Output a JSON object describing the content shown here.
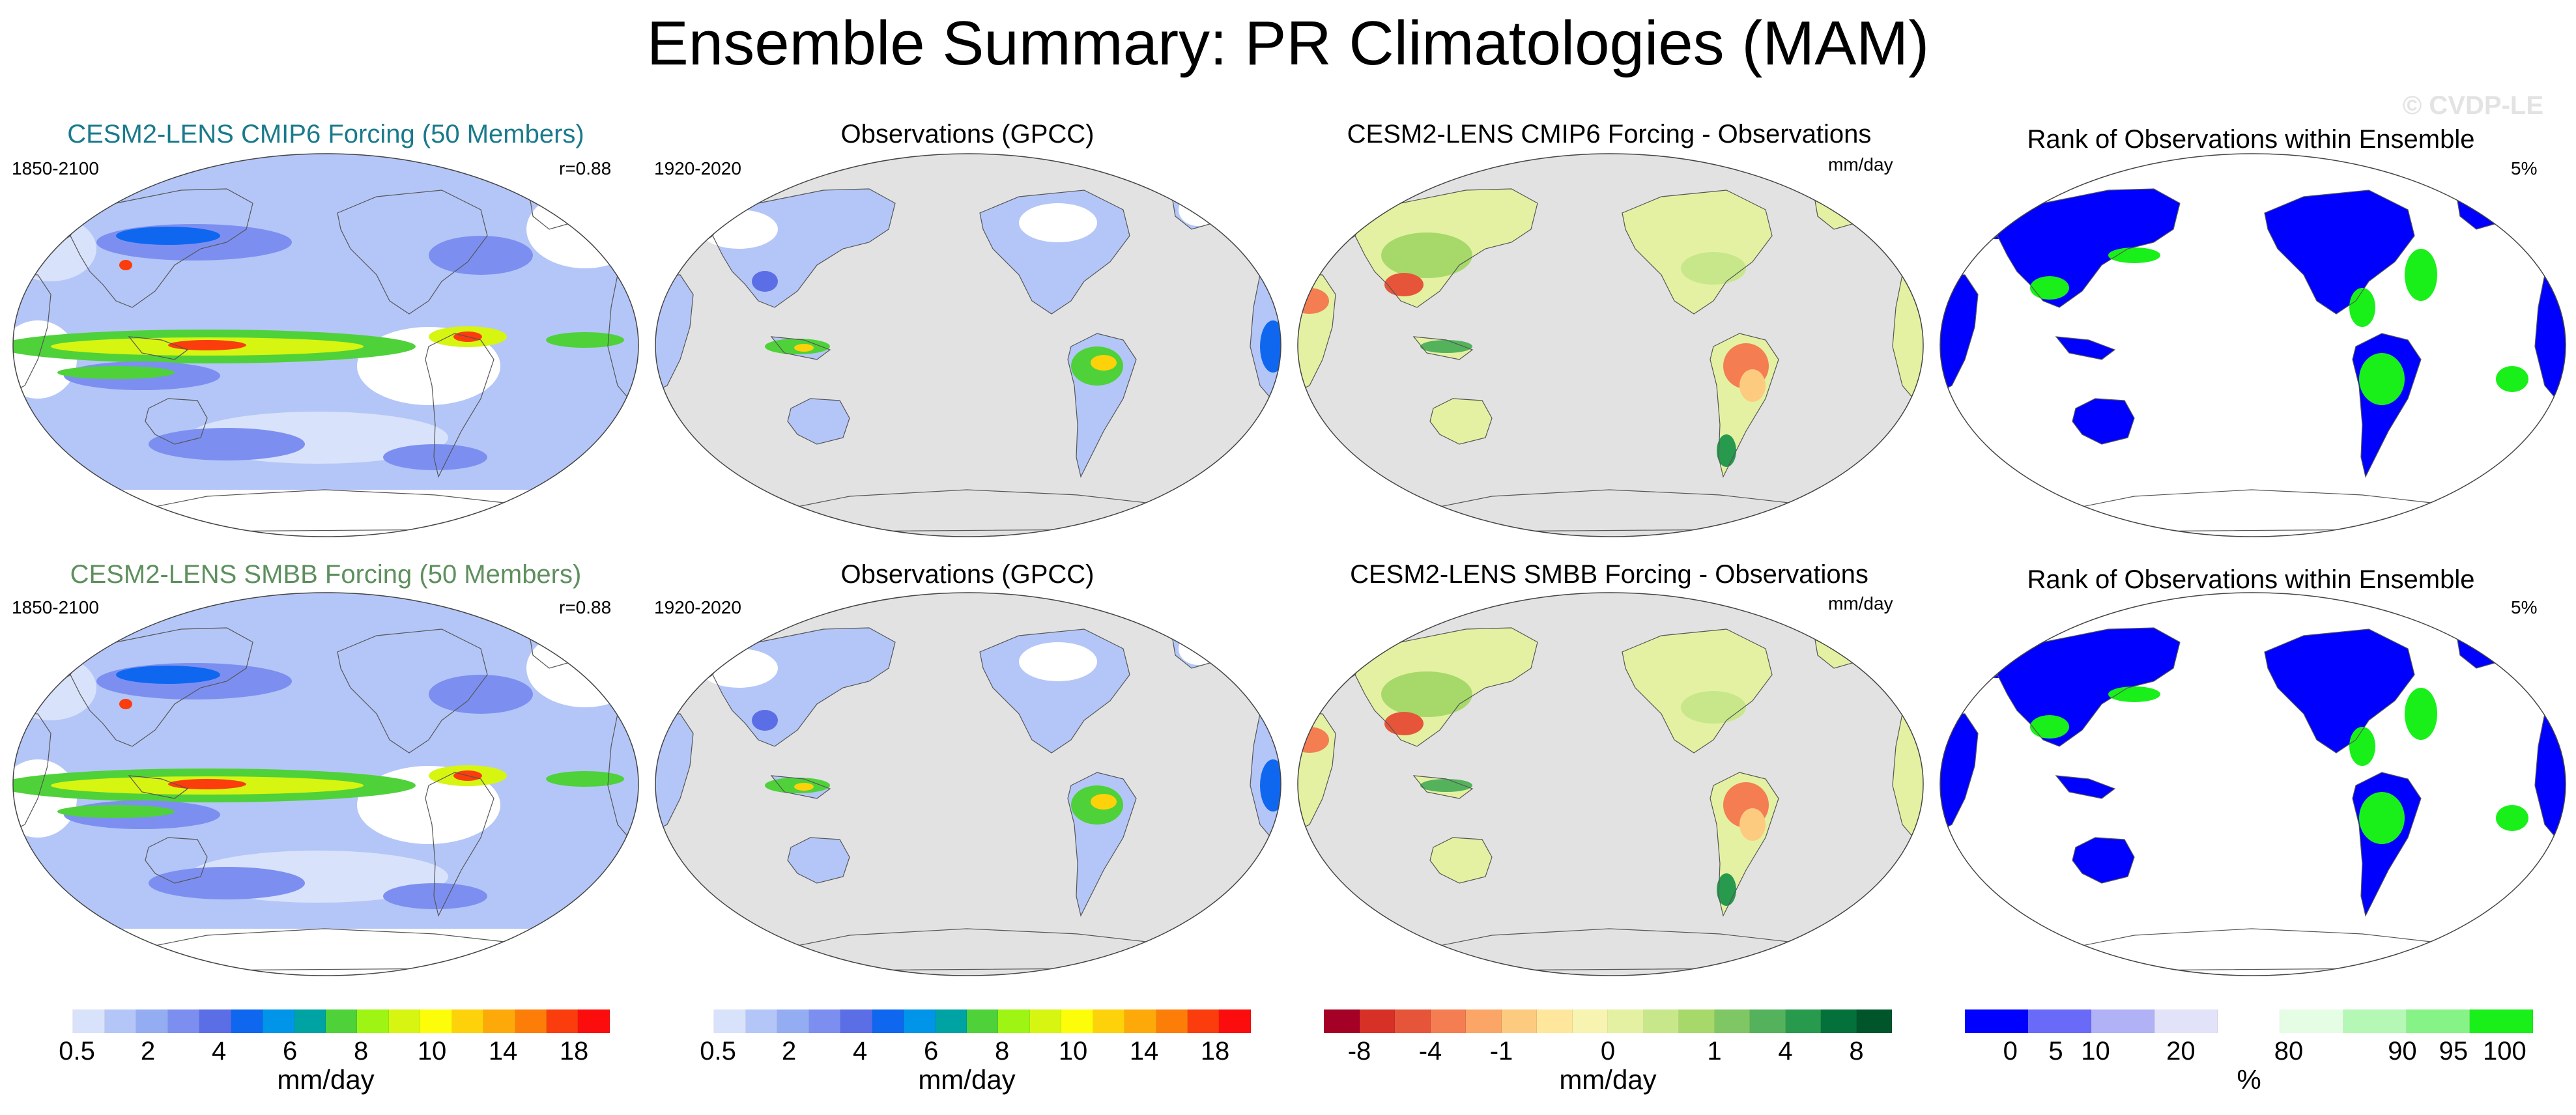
{
  "figure_title": "Ensemble Summary: PR Climatologies (MAM)",
  "watermark": "© CVDP-LE",
  "rows": [
    {
      "model_title": "CESM2-LENS CMIP6 Forcing (50 Members)",
      "model_title_color": "#1a7a8c",
      "model_years": "1850-2100",
      "model_corr": "r=0.88",
      "obs_title": "Observations (GPCC)",
      "obs_years": "1920-2020",
      "diff_title": "CESM2-LENS CMIP6 Forcing - Observations",
      "diff_units": "mm/day",
      "rank_title": "Rank of Observations within Ensemble",
      "rank_pct": "5%"
    },
    {
      "model_title": "CESM2-LENS SMBB Forcing (50 Members)",
      "model_title_color": "#5e8f5e",
      "model_years": "1850-2100",
      "model_corr": "r=0.88",
      "obs_title": "Observations (GPCC)",
      "obs_years": "1920-2020",
      "diff_title": "CESM2-LENS SMBB Forcing - Observations",
      "diff_units": "mm/day",
      "rank_title": "Rank of Observations within Ensemble",
      "rank_pct": "5%"
    }
  ],
  "colorbars": [
    {
      "name": "precip-model",
      "colors": [
        "#ffffff",
        "#d8e2fa",
        "#b4c6f7",
        "#94acf2",
        "#7c8ff0",
        "#5c6ee6",
        "#0f67f0",
        "#0095e8",
        "#00a3a3",
        "#4fd13a",
        "#9ef514",
        "#d6f511",
        "#fdfd0a",
        "#fdd20a",
        "#fda90a",
        "#fd7d09",
        "#fb3c0c",
        "#fb0d0d"
      ],
      "labels": [
        "0.5",
        "2",
        "4",
        "6",
        "8",
        "10",
        "14",
        "18"
      ],
      "units": "mm/day"
    },
    {
      "name": "precip-obs",
      "colors": [
        "#ffffff",
        "#d8e2fa",
        "#b4c6f7",
        "#94acf2",
        "#7c8ff0",
        "#5c6ee6",
        "#0f67f0",
        "#0095e8",
        "#00a3a3",
        "#4fd13a",
        "#9ef514",
        "#d6f511",
        "#fdfd0a",
        "#fdd20a",
        "#fda90a",
        "#fd7d09",
        "#fb3c0c",
        "#fb0d0d"
      ],
      "labels": [
        "0.5",
        "2",
        "4",
        "6",
        "8",
        "10",
        "14",
        "18"
      ],
      "units": "mm/day"
    },
    {
      "name": "difference",
      "colors": [
        "#a50026",
        "#d73027",
        "#e6553a",
        "#f47d52",
        "#fba667",
        "#fdcb7f",
        "#fee79c",
        "#f6f4b0",
        "#e4f1a3",
        "#c7e78a",
        "#a6d96a",
        "#7fc764",
        "#54b25c",
        "#279a4e",
        "#04703a",
        "#00552a"
      ],
      "labels": [
        "-8",
        "-4",
        "-1",
        "0",
        "1",
        "4",
        "8"
      ],
      "units": "mm/day"
    },
    {
      "name": "rank",
      "colors": [
        "#0000ff",
        "#6a6af9",
        "#b1b1f6",
        "#e2e2f9",
        "#ffffff",
        "#e4fde4",
        "#b5f7b5",
        "#86f386",
        "#19f019"
      ],
      "labels": [
        "0",
        "5",
        "10",
        "20",
        "80",
        "90",
        "95",
        "100"
      ],
      "units": "%"
    }
  ],
  "chart_data": [
    {
      "type": "heatmap",
      "panel": "row1-col1",
      "title": "CESM2-LENS CMIP6 Forcing (50 Members)",
      "period": "1850-2100",
      "pattern_correlation": 0.88,
      "units": "mm/day",
      "levels": [
        0.5,
        1,
        2,
        3,
        4,
        5,
        6,
        7,
        8,
        9,
        10,
        12,
        14,
        16,
        18
      ]
    },
    {
      "type": "heatmap",
      "panel": "row1-col2",
      "title": "Observations (GPCC)",
      "period": "1920-2020",
      "units": "mm/day",
      "levels": [
        0.5,
        1,
        2,
        3,
        4,
        5,
        6,
        7,
        8,
        9,
        10,
        12,
        14,
        16,
        18
      ]
    },
    {
      "type": "heatmap",
      "panel": "row1-col3",
      "title": "CESM2-LENS CMIP6 Forcing - Observations",
      "units": "mm/day",
      "levels": [
        -8,
        -6,
        -4,
        -2,
        -1,
        -0.5,
        0,
        0.5,
        1,
        2,
        4,
        6,
        8
      ]
    },
    {
      "type": "heatmap",
      "panel": "row1-col4",
      "title": "Rank of Observations within Ensemble",
      "outside_ensemble_pct": 5,
      "units": "%",
      "levels": [
        0,
        5,
        10,
        20,
        80,
        90,
        95,
        100
      ]
    },
    {
      "type": "heatmap",
      "panel": "row2-col1",
      "title": "CESM2-LENS SMBB Forcing (50 Members)",
      "period": "1850-2100",
      "pattern_correlation": 0.88,
      "units": "mm/day",
      "levels": [
        0.5,
        1,
        2,
        3,
        4,
        5,
        6,
        7,
        8,
        9,
        10,
        12,
        14,
        16,
        18
      ]
    },
    {
      "type": "heatmap",
      "panel": "row2-col2",
      "title": "Observations (GPCC)",
      "period": "1920-2020",
      "units": "mm/day",
      "levels": [
        0.5,
        1,
        2,
        3,
        4,
        5,
        6,
        7,
        8,
        9,
        10,
        12,
        14,
        16,
        18
      ]
    },
    {
      "type": "heatmap",
      "panel": "row2-col3",
      "title": "CESM2-LENS SMBB Forcing - Observations",
      "units": "mm/day",
      "levels": [
        -8,
        -6,
        -4,
        -2,
        -1,
        -0.5,
        0,
        0.5,
        1,
        2,
        4,
        6,
        8
      ]
    },
    {
      "type": "heatmap",
      "panel": "row2-col4",
      "title": "Rank of Observations within Ensemble",
      "outside_ensemble_pct": 5,
      "units": "%",
      "levels": [
        0,
        5,
        10,
        20,
        80,
        90,
        95,
        100
      ]
    }
  ]
}
